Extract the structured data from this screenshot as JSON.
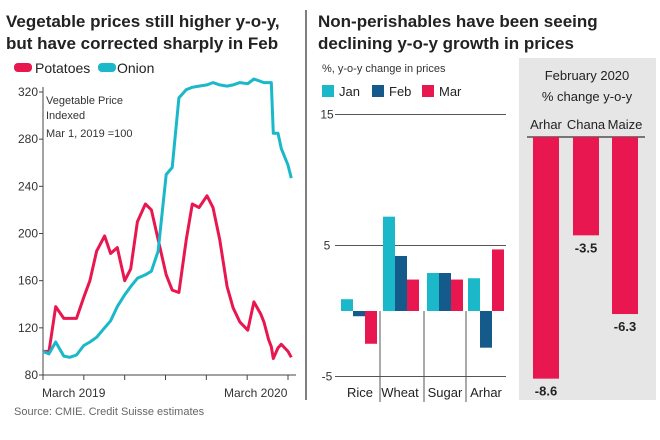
{
  "colors": {
    "potatoes": "#e8174f",
    "onion": "#1ab8c8",
    "jan": "#1ab8c8",
    "feb": "#145a8a",
    "mar": "#e8174f",
    "panel_bg": "#e6e6e6"
  },
  "source": "Source: CMIE. Credit Suisse estimates",
  "chart_data": [
    {
      "type": "line",
      "title": [
        "Vegetable prices still higher y-o-y,",
        "but have corrected sharply in Feb"
      ],
      "annotation": [
        "Vegetable Price",
        "Indexed",
        "Mar 1, 2019 =100"
      ],
      "ylim": [
        80,
        330
      ],
      "yticks": [
        80,
        120,
        160,
        200,
        240,
        280,
        320
      ],
      "xtick_labels": [
        "March 2019",
        "March 2020"
      ],
      "legend": "top-left",
      "x": [
        "2019-03-01",
        "2019-03-10",
        "2019-03-20",
        "2019-04-01",
        "2019-04-10",
        "2019-04-20",
        "2019-05-01",
        "2019-05-10",
        "2019-05-20",
        "2019-06-01",
        "2019-06-10",
        "2019-06-20",
        "2019-07-01",
        "2019-07-10",
        "2019-07-20",
        "2019-08-01",
        "2019-08-10",
        "2019-08-20",
        "2019-09-01",
        "2019-09-10",
        "2019-09-20",
        "2019-10-01",
        "2019-10-10",
        "2019-10-20",
        "2019-11-01",
        "2019-11-10",
        "2019-11-20",
        "2019-12-01",
        "2019-12-10",
        "2019-12-20",
        "2020-01-01",
        "2020-01-10",
        "2020-01-20",
        "2020-01-25",
        "2020-02-01",
        "2020-02-05",
        "2020-02-08",
        "2020-02-15",
        "2020-02-20",
        "2020-03-01",
        "2020-03-06"
      ],
      "series": [
        {
          "name": "Potatoes",
          "values": [
            100,
            100,
            138,
            128,
            128,
            128,
            146,
            160,
            185,
            198,
            183,
            188,
            160,
            170,
            210,
            225,
            220,
            195,
            165,
            152,
            150,
            195,
            225,
            222,
            232,
            222,
            195,
            155,
            137,
            125,
            118,
            142,
            132,
            125,
            110,
            104,
            94,
            103,
            106,
            100,
            95
          ]
        },
        {
          "name": "Onion",
          "values": [
            100,
            98,
            108,
            96,
            95,
            97,
            105,
            108,
            112,
            120,
            126,
            138,
            148,
            155,
            162,
            165,
            168,
            185,
            250,
            256,
            315,
            322,
            324,
            325,
            326,
            328,
            326,
            325,
            326,
            328,
            327,
            331,
            329,
            328,
            328,
            328,
            285,
            285,
            272,
            258,
            247
          ]
        }
      ]
    },
    {
      "type": "bar",
      "title": [
        "Non-perishables have been seeing",
        "declining y-o-y growth in prices"
      ],
      "ylabel": "%, y-o-y change in prices",
      "ylim": [
        -5,
        15
      ],
      "yticks": [
        15,
        5,
        -5
      ],
      "legend": "top-left",
      "categories": [
        "Rice",
        "Wheat",
        "Sugar",
        "Arhar"
      ],
      "series": [
        {
          "name": "Jan",
          "values": [
            0.9,
            7.2,
            2.9,
            2.5
          ]
        },
        {
          "name": "Feb",
          "values": [
            -0.4,
            4.2,
            2.9,
            -2.8
          ]
        },
        {
          "name": "Mar",
          "values": [
            -2.5,
            2.4,
            2.4,
            4.7
          ]
        }
      ]
    },
    {
      "type": "bar",
      "title": [
        "February 2020",
        "% change y-o-y"
      ],
      "categories": [
        "Arhar",
        "Chana",
        "Maize"
      ],
      "values": [
        -8.6,
        -3.5,
        -6.3
      ],
      "data_labels": [
        "-8.6",
        "-3.5",
        "-6.3"
      ]
    }
  ]
}
